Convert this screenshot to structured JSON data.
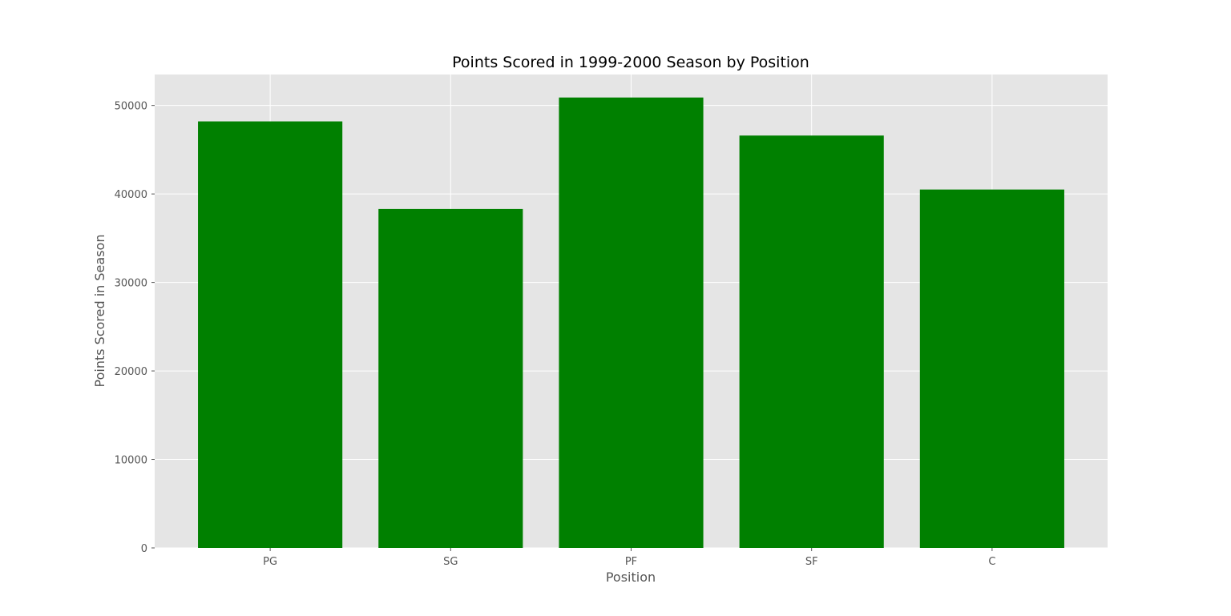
{
  "chart_data": {
    "type": "bar",
    "title": "Points Scored in 1999-2000 Season by Position",
    "xlabel": "Position",
    "ylabel": "Points Scored in Season",
    "categories": [
      "PG",
      "SG",
      "PF",
      "SF",
      "C"
    ],
    "values": [
      48200,
      38300,
      50900,
      46600,
      40500
    ],
    "ylim": [
      0,
      53500
    ],
    "yticks": [
      0,
      10000,
      20000,
      30000,
      40000,
      50000
    ],
    "grid": true,
    "legend": "none",
    "colors": {
      "bar": "#008000",
      "plot_background": "#e5e5e5",
      "grid": "#ffffff",
      "text": "#555555"
    }
  }
}
